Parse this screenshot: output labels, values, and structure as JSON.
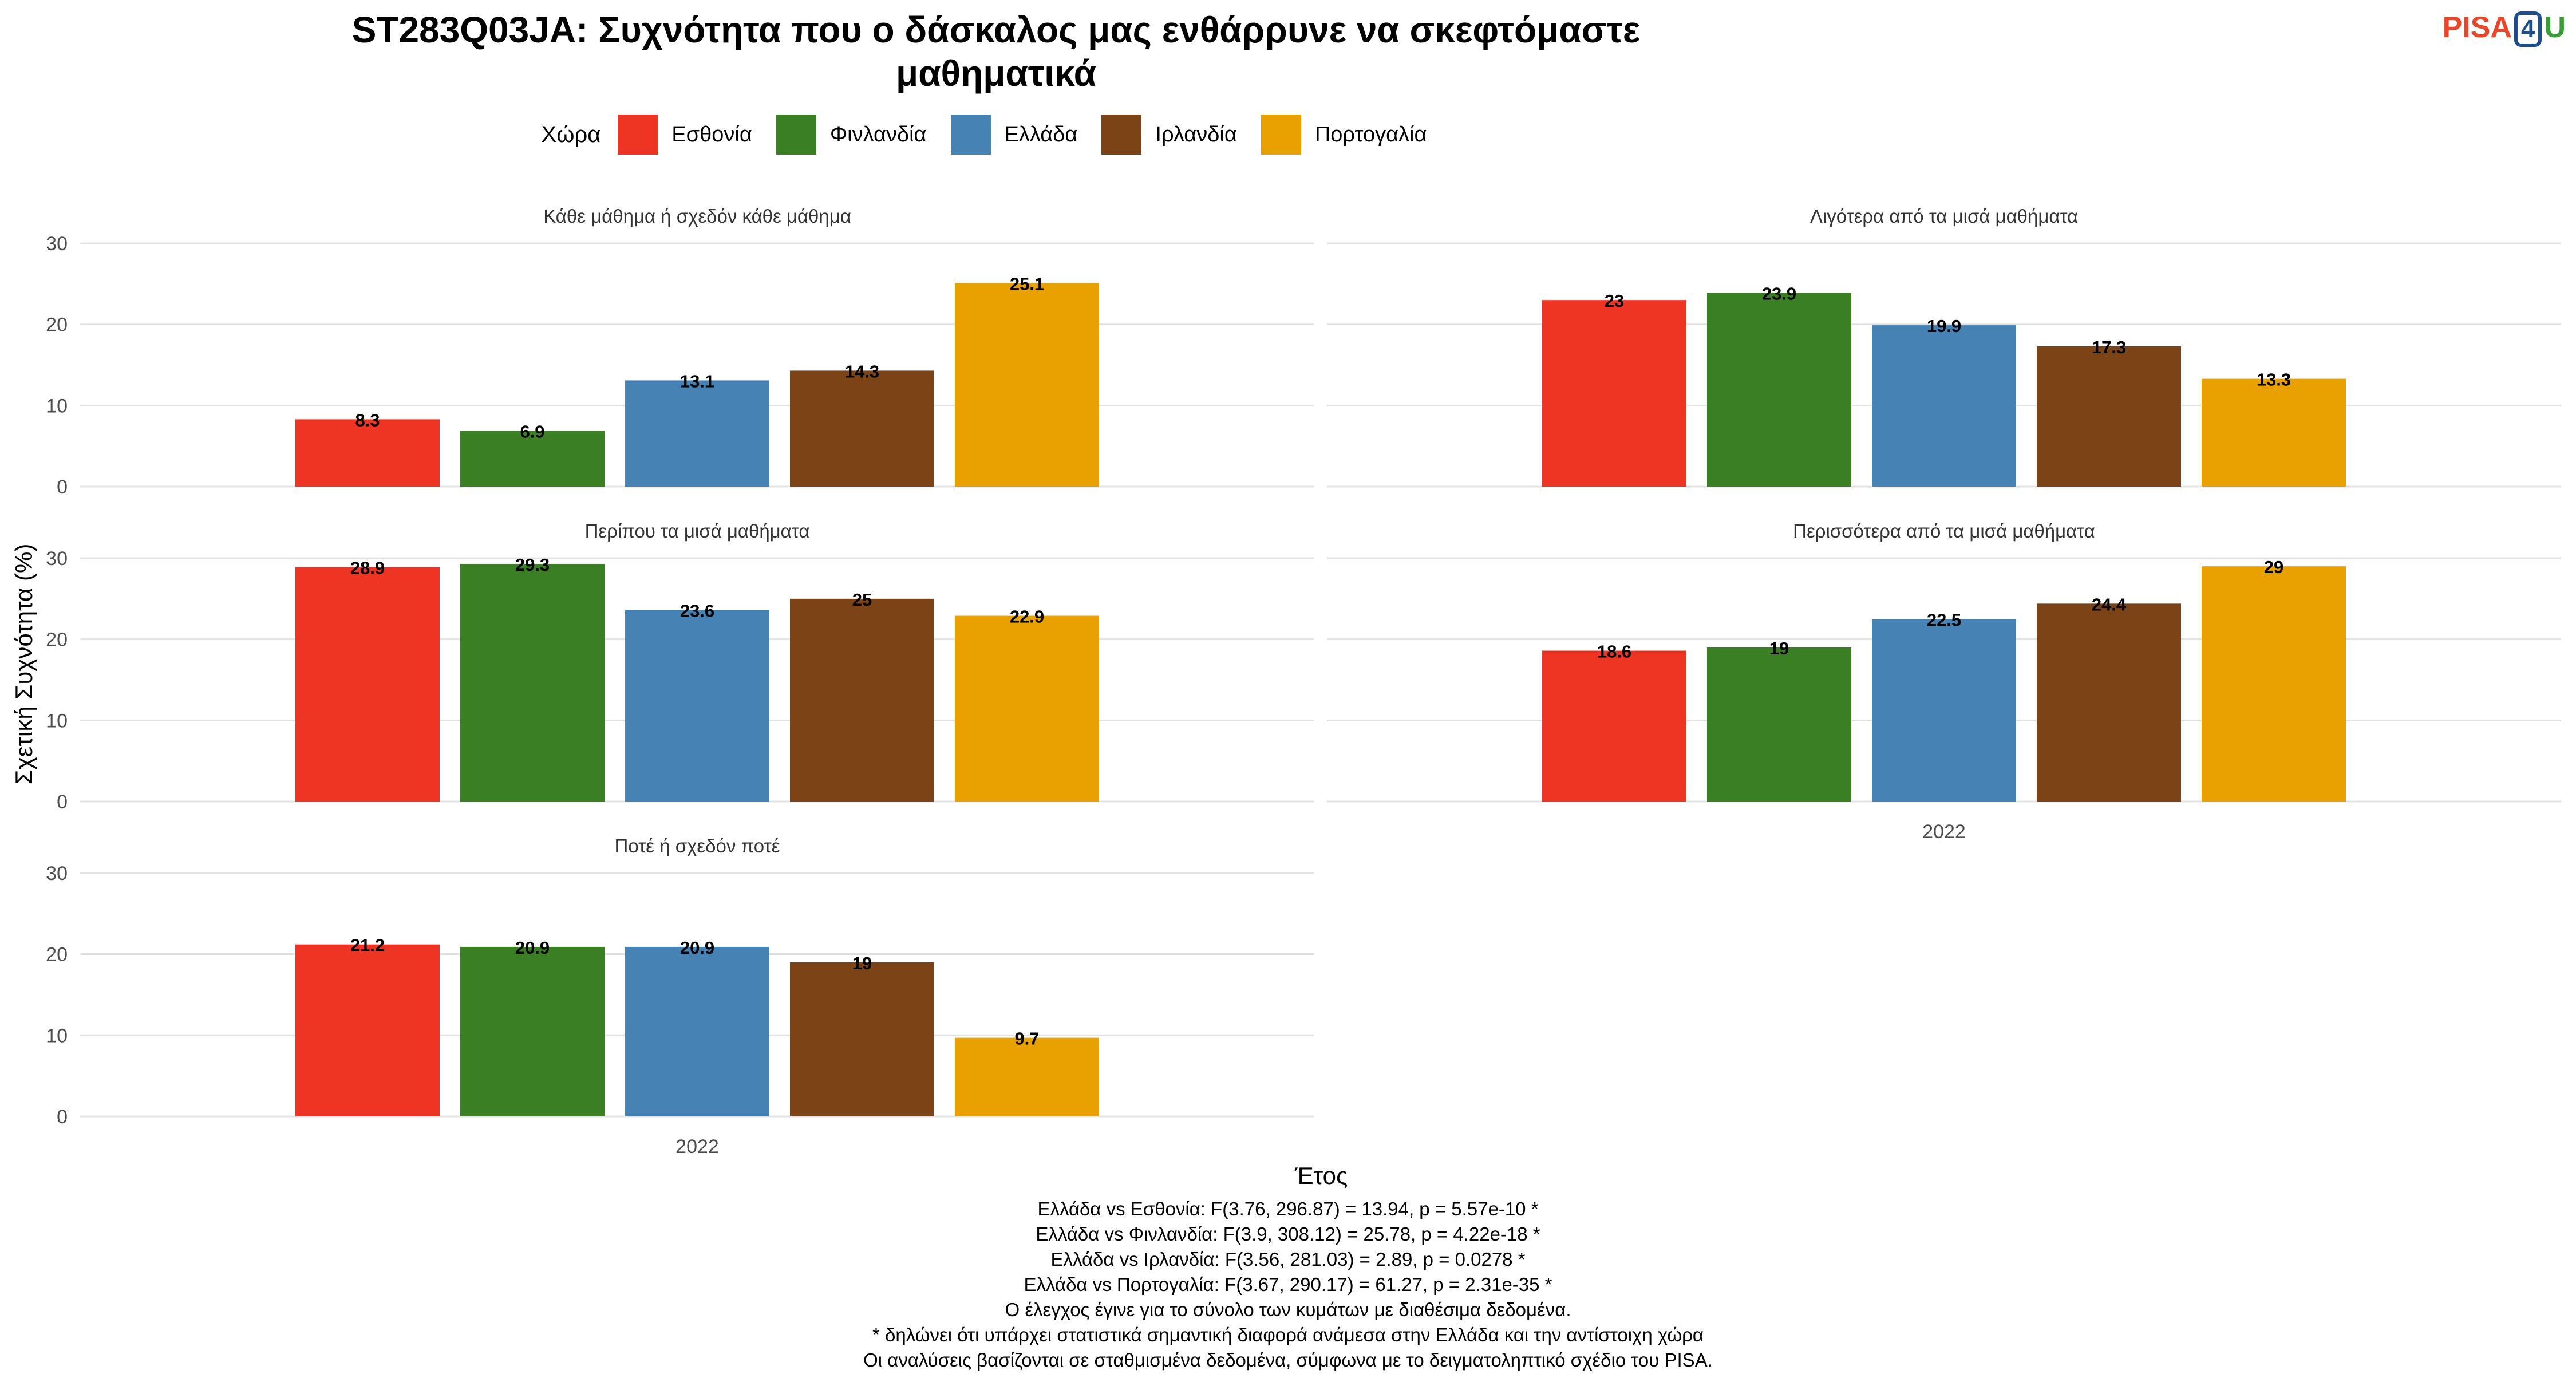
{
  "title_lines": [
    "ST283Q03JA: Συχνότητα που ο δάσκαλος μας ενθάρρυνε να σκεφτόμαστε",
    "μαθηματικά"
  ],
  "logo": {
    "pisa": "PISA",
    "four": "4",
    "u": "U"
  },
  "legend": {
    "title": "Χώρα",
    "items": [
      {
        "label": "Εσθονία",
        "color": "#EE3524"
      },
      {
        "label": "Φινλανδία",
        "color": "#3A7F24"
      },
      {
        "label": "Ελλάδα",
        "color": "#4682B4"
      },
      {
        "label": "Ιρλανδία",
        "color": "#7B4316"
      },
      {
        "label": "Πορτογαλία",
        "color": "#E8A100"
      }
    ]
  },
  "chart_data": {
    "type": "bar",
    "ylabel": "Σχετική Συχνότητα (%)",
    "xlabel": "Έτος",
    "ylim": [
      0,
      30
    ],
    "yticks": [
      0,
      10,
      20,
      30
    ],
    "x_category": "2022",
    "series_names": [
      "Εσθονία",
      "Φινλανδία",
      "Ελλάδα",
      "Ιρλανδία",
      "Πορτογαλία"
    ],
    "colors": [
      "#EE3524",
      "#3A7F24",
      "#4682B4",
      "#7B4316",
      "#E8A100"
    ],
    "grid": true,
    "legend_position": "top",
    "panels": [
      {
        "title": "Κάθε μάθημα ή σχεδόν κάθε μάθημα",
        "values": [
          8.3,
          6.9,
          13.1,
          14.3,
          25.1
        ],
        "labels": [
          "8.3",
          "6.9",
          "13.1",
          "14.3",
          "25.1"
        ]
      },
      {
        "title": "Λιγότερα από τα μισά μαθήματα",
        "values": [
          23,
          23.9,
          19.9,
          17.3,
          13.3
        ],
        "labels": [
          "23",
          "23.9",
          "19.9",
          "17.3",
          "13.3"
        ]
      },
      {
        "title": "Περίπου τα μισά μαθήματα",
        "values": [
          28.9,
          29.3,
          23.6,
          25,
          22.9
        ],
        "labels": [
          "28.9",
          "29.3",
          "23.6",
          "25",
          "22.9"
        ]
      },
      {
        "title": "Περισσότερα από τα μισά μαθήματα",
        "values": [
          18.6,
          19,
          22.5,
          24.4,
          29
        ],
        "labels": [
          "18.6",
          "19",
          "22.5",
          "24.4",
          "29"
        ]
      },
      {
        "title": "Ποτέ ή σχεδόν ποτέ",
        "values": [
          21.2,
          20.9,
          20.9,
          19,
          9.7
        ],
        "labels": [
          "21.2",
          "20.9",
          "20.9",
          "19",
          "9.7"
        ]
      }
    ]
  },
  "notes": [
    "Ελλάδα vs Εσθονία: F(3.76, 296.87) = 13.94, p = 5.57e-10 *",
    "Ελλάδα vs Φινλανδία: F(3.9, 308.12) = 25.78, p = 4.22e-18 *",
    "Ελλάδα vs Ιρλανδία: F(3.56, 281.03) = 2.89, p = 0.0278 *",
    "Ελλάδα vs Πορτογαλία: F(3.67, 290.17) = 61.27, p = 2.31e-35 *",
    "Ο έλεγχος έγινε για το σύνολο των κυμάτων με διαθέσιμα δεδομένα.",
    "* δηλώνει ότι υπάρχει στατιστικά σημαντική διαφορά ανάμεσα στην Ελλάδα και την αντίστοιχη χώρα",
    "Οι αναλύσεις βασίζονται σε σταθμισμένα δεδομένα, σύμφωνα με το δειγματοληπτικό σχέδιο του PISA."
  ]
}
